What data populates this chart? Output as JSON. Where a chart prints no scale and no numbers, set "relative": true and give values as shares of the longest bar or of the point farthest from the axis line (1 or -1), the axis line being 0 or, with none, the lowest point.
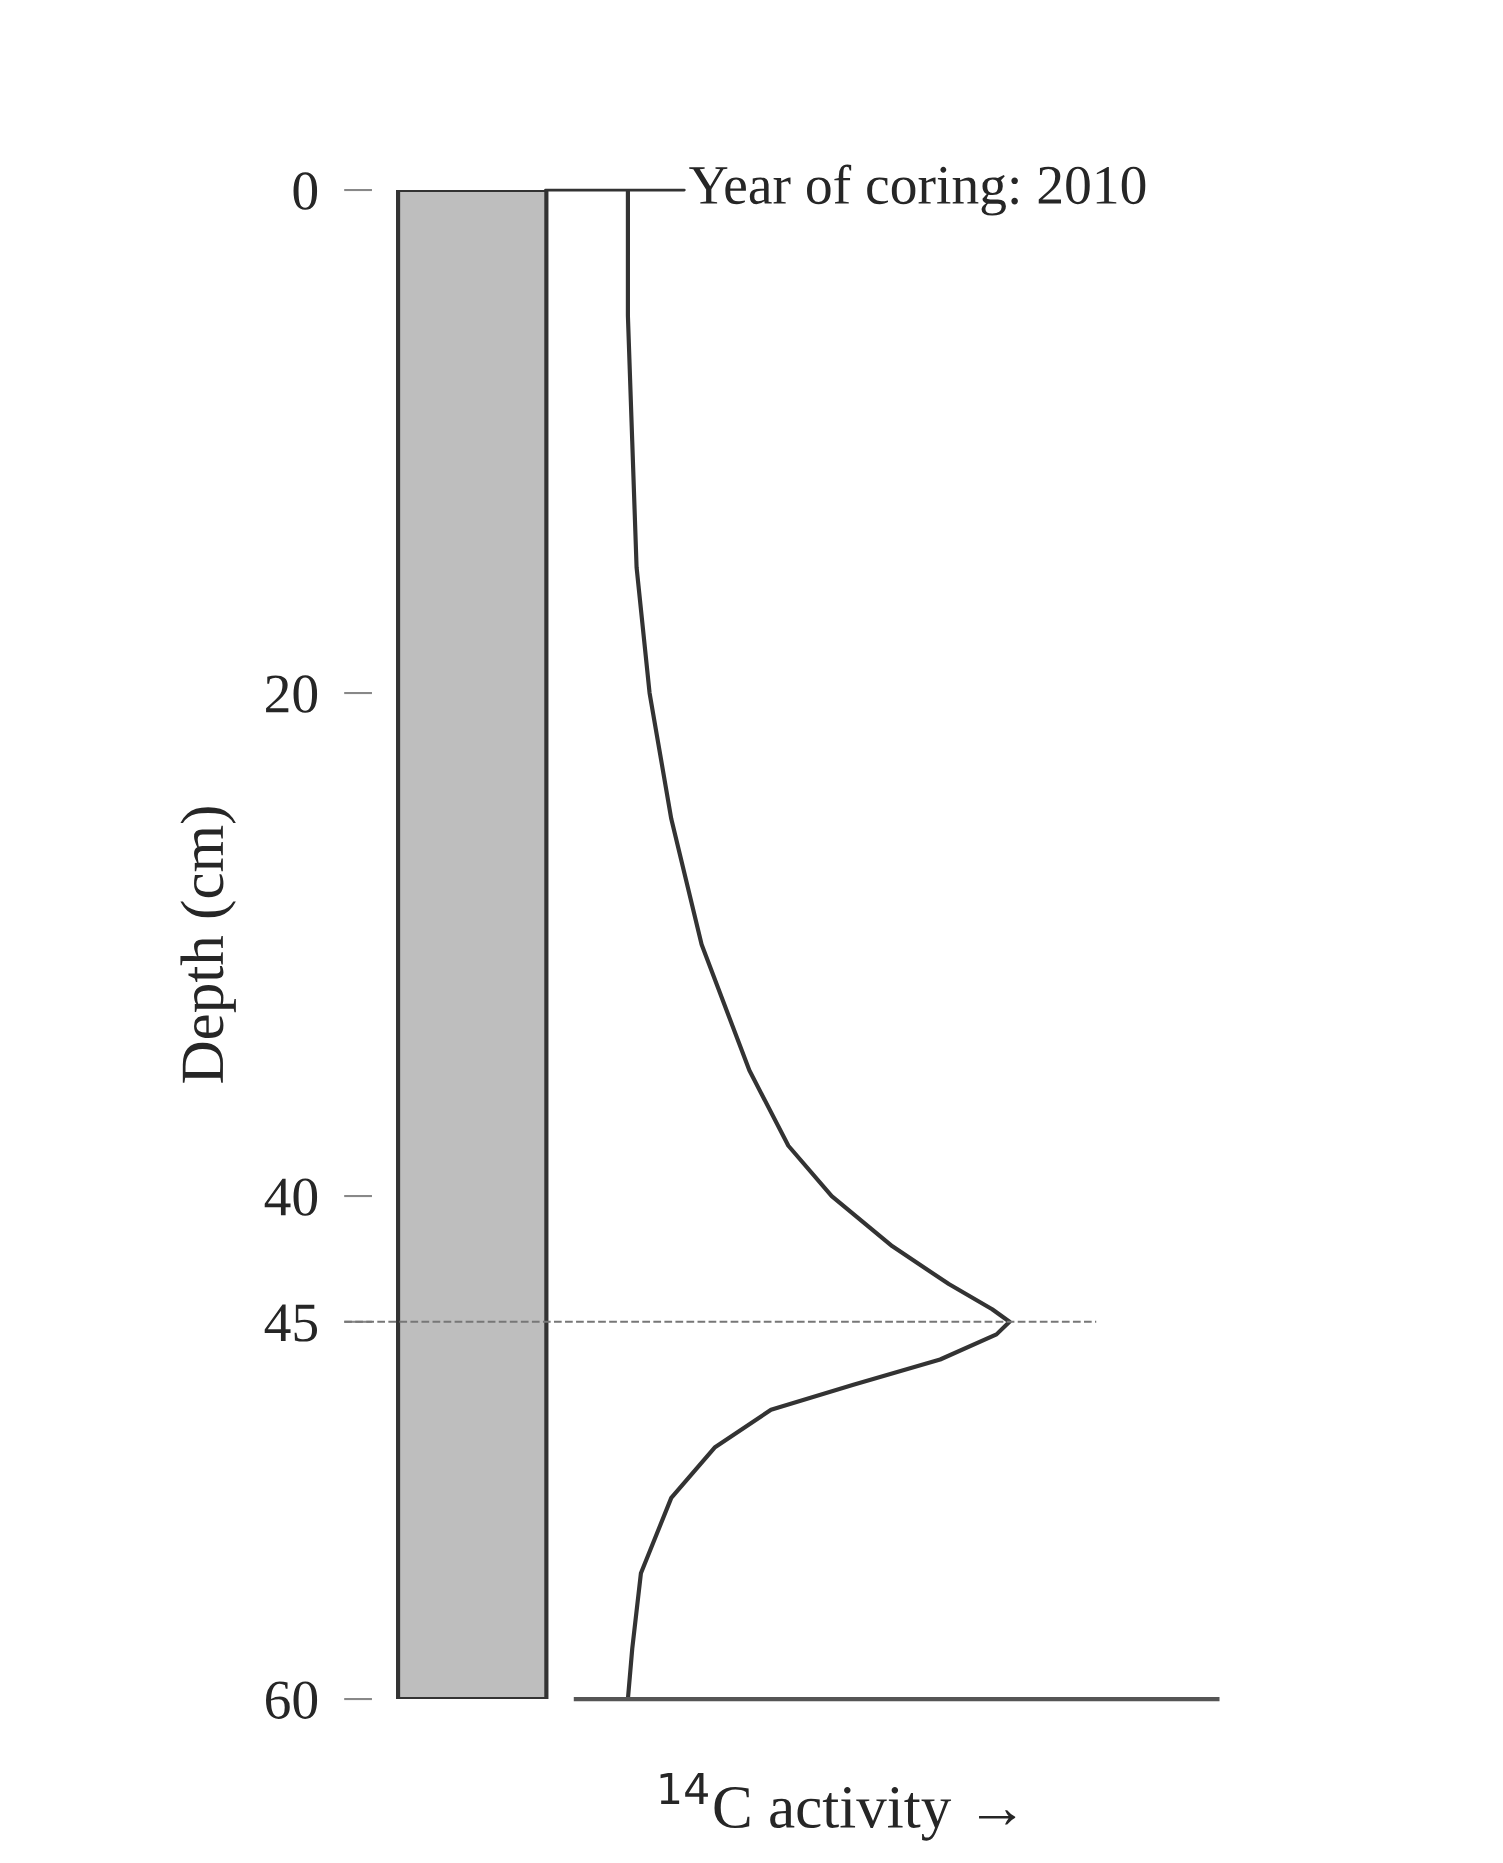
{
  "chart_data": {
    "type": "line",
    "orientation": "horizontal",
    "relative": true,
    "ylabel": "Depth (cm)",
    "xlabel": "$^{14}$C activity →",
    "annotations": [
      "Year of coring: 2010"
    ],
    "ylim": [
      60,
      0
    ],
    "yticks": [
      0,
      20,
      40,
      45,
      60
    ],
    "x": [
      0,
      5,
      10,
      15,
      20,
      25,
      30,
      35,
      38,
      40,
      42,
      43.5,
      44.5,
      45,
      45.5,
      46.5,
      47.5,
      48.5,
      50,
      52,
      55,
      58,
      60
    ],
    "series": [
      {
        "color": "#333333",
        "values": [
          0.12,
          0.12,
          0.13,
          0.14,
          0.17,
          0.22,
          0.29,
          0.4,
          0.49,
          0.59,
          0.73,
          0.86,
          0.96,
          1,
          0.97,
          0.84,
          0.64,
          0.45,
          0.32,
          0.22,
          0.15,
          0.13,
          0.12
        ]
      }
    ],
    "ref_lines": [
      {
        "axis": "y",
        "value": 45,
        "color": "#777777",
        "line_style": "dashed"
      }
    ],
    "grid": false,
    "legend": false,
    "marker": "none",
    "line_style": "solid"
  }
}
